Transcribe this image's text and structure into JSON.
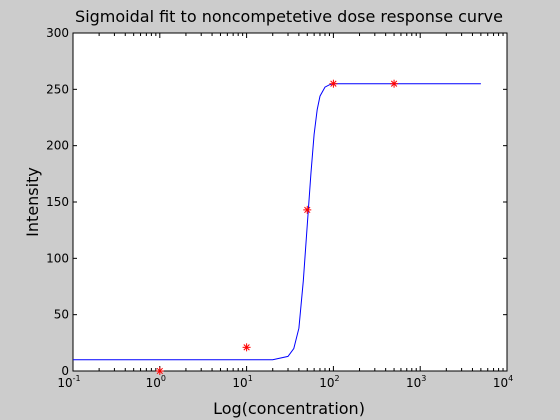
{
  "chart_data": {
    "type": "line",
    "title": "Sigmoidal fit to noncompetetive dose response curve",
    "xlabel": "Log(concentration)",
    "ylabel": "Intensity",
    "x_scale": "log",
    "xlim": [
      0.1,
      10000
    ],
    "ylim": [
      0,
      300
    ],
    "grid": false,
    "x_ticks": [
      {
        "base": "10",
        "exp": "-1",
        "value": 0.1
      },
      {
        "base": "10",
        "exp": "0",
        "value": 1
      },
      {
        "base": "10",
        "exp": "1",
        "value": 10
      },
      {
        "base": "10",
        "exp": "2",
        "value": 100
      },
      {
        "base": "10",
        "exp": "3",
        "value": 1000
      },
      {
        "base": "10",
        "exp": "4",
        "value": 10000
      }
    ],
    "y_ticks": [
      "0",
      "50",
      "100",
      "150",
      "200",
      "250",
      "300"
    ],
    "series": [
      {
        "kind": "fit-line",
        "color": "#0000ff",
        "x": [
          0.1,
          1,
          10,
          20,
          30,
          35,
          40,
          45,
          50,
          55,
          60,
          65,
          70,
          80,
          90,
          100,
          150,
          500,
          1000,
          5000
        ],
        "y": [
          10,
          10,
          10,
          10,
          13,
          20,
          38,
          80,
          130,
          175,
          210,
          232,
          244,
          252,
          254,
          255,
          255,
          255,
          255,
          255
        ]
      },
      {
        "kind": "data-points",
        "marker": "asterisk",
        "color": "#ff0000",
        "x": [
          1,
          10,
          50,
          100,
          500
        ],
        "y": [
          0,
          21,
          143,
          255,
          255
        ]
      }
    ]
  }
}
